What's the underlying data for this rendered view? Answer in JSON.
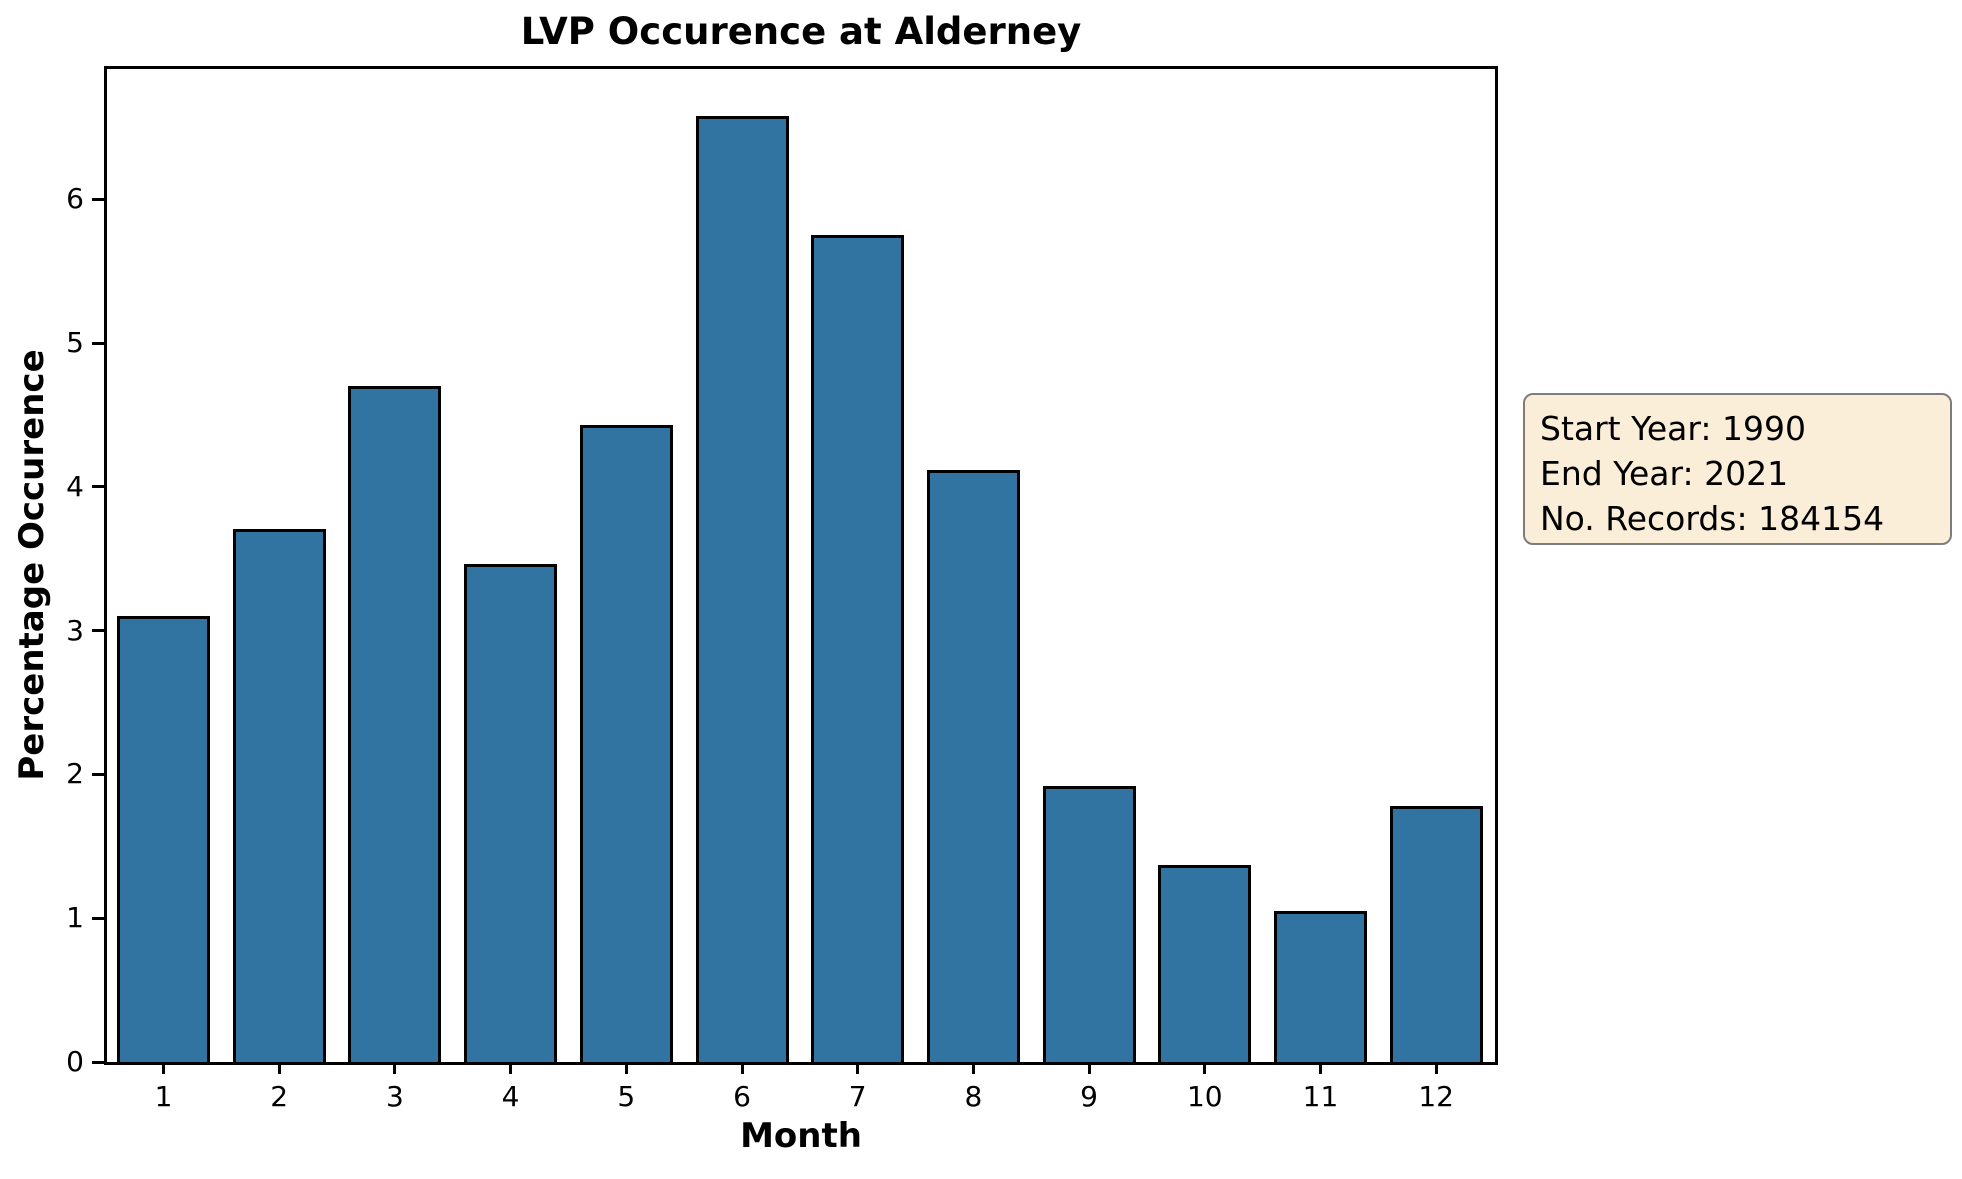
{
  "figure": {
    "background_color": "#ffffff"
  },
  "chart_data": {
    "type": "bar",
    "title": "LVP Occurence at Alderney",
    "xlabel": "Month",
    "ylabel": "Percentage Occurence",
    "categories": [
      "1",
      "2",
      "3",
      "4",
      "5",
      "6",
      "7",
      "8",
      "9",
      "10",
      "11",
      "12"
    ],
    "values": [
      3.1,
      3.71,
      4.7,
      3.46,
      4.43,
      6.58,
      5.75,
      4.12,
      1.92,
      1.37,
      1.05,
      1.78
    ],
    "ylim": [
      0,
      6.9
    ],
    "yticks": [
      0,
      1,
      2,
      3,
      4,
      5,
      6
    ],
    "grid": false,
    "legend_position": "none",
    "bar_color": "#3274a1",
    "bar_edge_color": "#000000",
    "axis_color": "#000000"
  },
  "annotation": {
    "lines": [
      "Start Year: 1990",
      "End Year: 2021",
      "No. Records: 184154"
    ],
    "start_year": "1990",
    "end_year": "2021",
    "num_records": "184154",
    "bg_color": "#faeed9",
    "border_color": "#7d7d7d"
  }
}
